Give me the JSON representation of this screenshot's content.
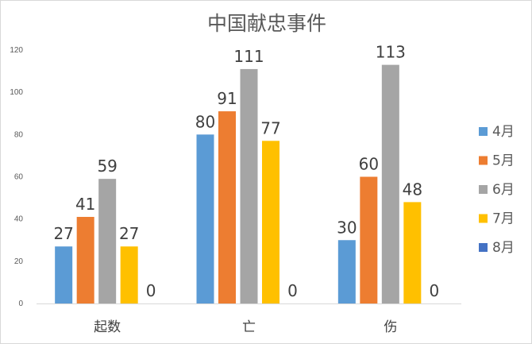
{
  "chart_data": {
    "type": "bar",
    "title": "中国献忠事件",
    "categories": [
      "起数",
      "亡",
      "伤"
    ],
    "series": [
      {
        "name": "4月",
        "values": [
          27,
          80,
          30
        ],
        "color": "#5b9bd5"
      },
      {
        "name": "5月",
        "values": [
          41,
          91,
          60
        ],
        "color": "#ed7d31"
      },
      {
        "name": "6月",
        "values": [
          59,
          111,
          113
        ],
        "color": "#a5a5a5"
      },
      {
        "name": "7月",
        "values": [
          27,
          77,
          48
        ],
        "color": "#ffc000"
      },
      {
        "name": "8月",
        "values": [
          0,
          0,
          0
        ],
        "color": "#4472c4"
      }
    ],
    "ylim": [
      0,
      120
    ],
    "yticks": [
      0,
      20,
      40,
      60,
      80,
      100,
      120
    ],
    "xlabel": "",
    "ylabel": "",
    "grid": false,
    "legend": "right",
    "data_labels": true
  }
}
